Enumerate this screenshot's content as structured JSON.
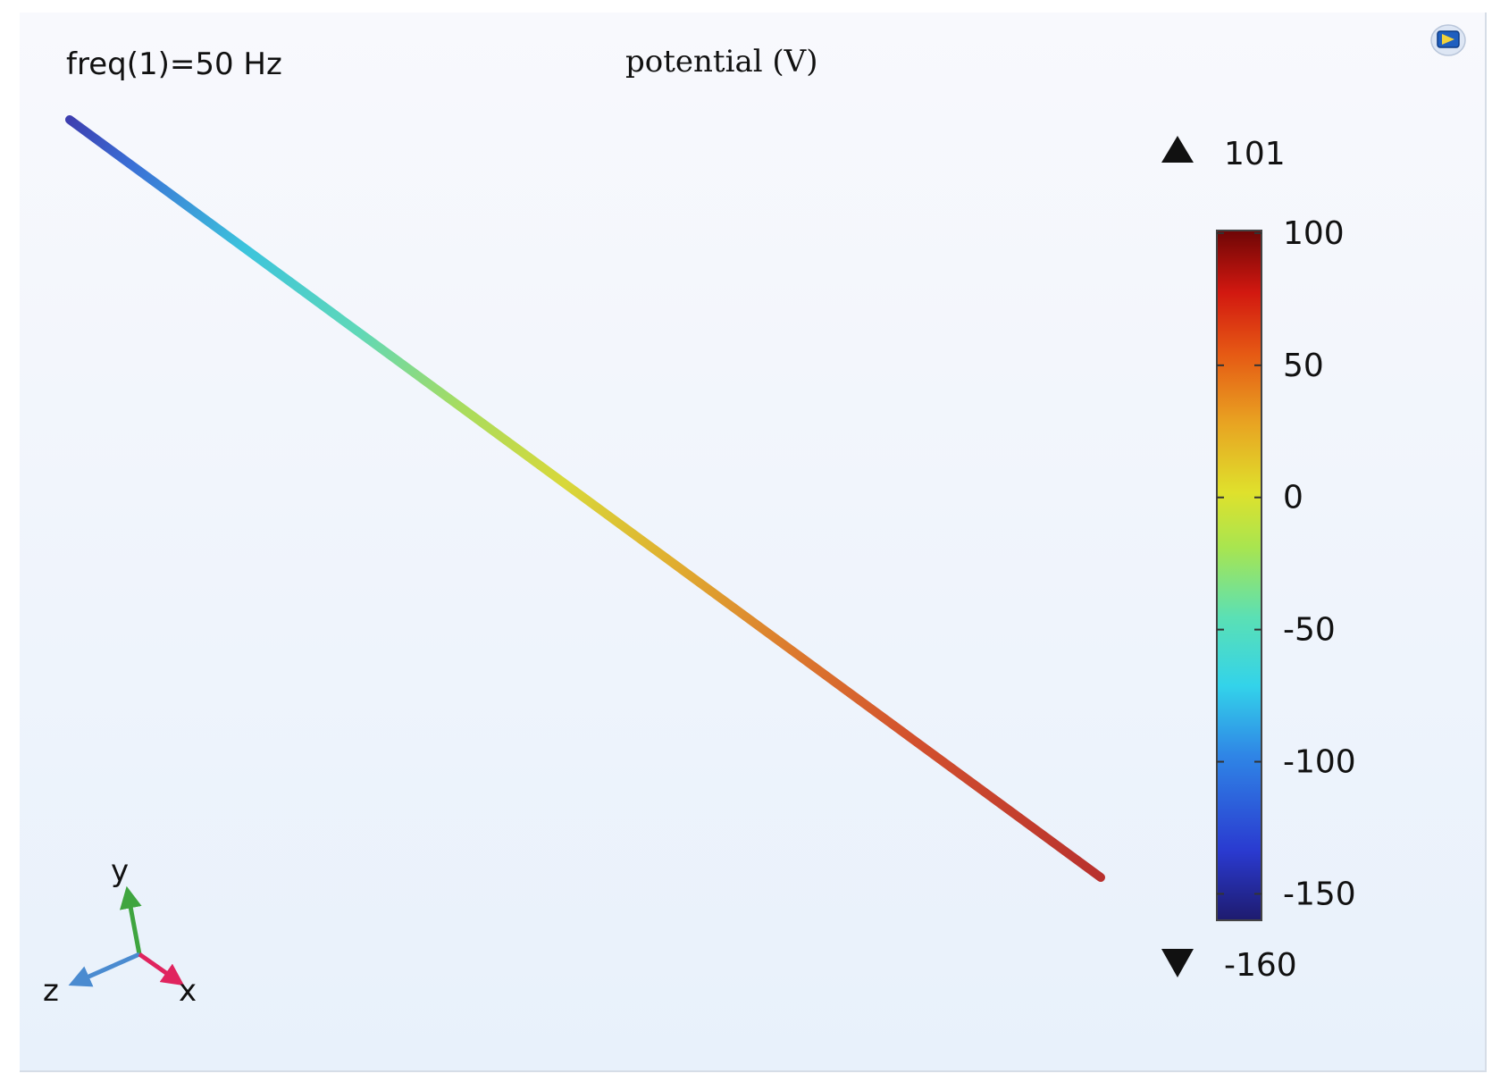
{
  "chart_data": {
    "type": "line",
    "title": "potential (V)",
    "annotation": "freq(1)=50 Hz",
    "colormap": "Rainbow",
    "color_range": [
      -160,
      101
    ],
    "colorbar": {
      "ticks": [
        100,
        50,
        0,
        -50,
        -100,
        -150
      ],
      "tick_labels": [
        "100",
        "50",
        "0",
        "-50",
        "-100",
        "-150"
      ],
      "max_label": "101",
      "min_label": "-160",
      "range": [
        -160,
        101
      ]
    },
    "series": [
      {
        "start_value": -160,
        "end_value": 101
      }
    ],
    "axes_triad": {
      "x": "x",
      "y": "y",
      "z": "z"
    }
  },
  "colors": {
    "x_axis": "#e0245e",
    "y_axis": "#3fa53f",
    "z_axis": "#4a8bd0"
  },
  "toolbar": {
    "scene_icon": "scene-light-icon"
  }
}
